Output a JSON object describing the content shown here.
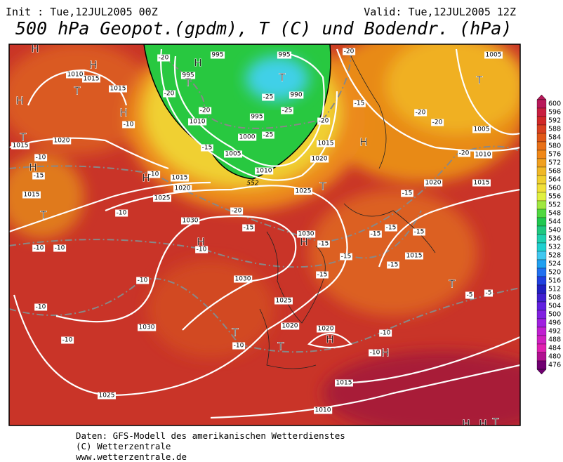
{
  "header": {
    "init": "Init : Tue,12JUL2005 00Z",
    "valid": "Valid: Tue,12JUL2005 12Z",
    "title": "500 hPa Geopot.(gpdm), T (C) und Bodendr. (hPa)"
  },
  "map": {
    "pressure_labels": [
      "995",
      "995",
      "995",
      "990",
      "995",
      "1000",
      "1005",
      "1010",
      "1010",
      "1015",
      "1020",
      "1025",
      "1030",
      "1025",
      "1020",
      "1015",
      "1010",
      "1015",
      "1015",
      "1020",
      "1015",
      "1015",
      "1030",
      "1030",
      "1025",
      "1020",
      "1020",
      "1030",
      "1025",
      "1015",
      "1010",
      "1015",
      "1020",
      "1015",
      "1010",
      "1005",
      "1005"
    ],
    "contour_label": "552",
    "temperature_labels": [
      "-20",
      "-20",
      "-20",
      "-25",
      "-25",
      "-25",
      "-20",
      "-15",
      "-20",
      "-15",
      "-20",
      "-20",
      "-20",
      "-10",
      "-10",
      "-15",
      "-10",
      "-10",
      "-10",
      "-10",
      "-20",
      "-15",
      "-15",
      "-15",
      "-15",
      "-15",
      "-15",
      "-15",
      "-15",
      "-15",
      "-10",
      "-10",
      "-10",
      "-10",
      "-10",
      "-10",
      "-10",
      "-5",
      "-5"
    ],
    "centers": [
      "H",
      "H",
      "H",
      "H",
      "H",
      "H",
      "H",
      "H",
      "H",
      "H",
      "H",
      "H",
      "H",
      "H",
      "T",
      "T",
      "T",
      "T",
      "T",
      "T",
      "T",
      "T",
      "T",
      "T",
      "T"
    ]
  },
  "colorbar": {
    "ticks": [
      600,
      596,
      592,
      588,
      584,
      580,
      576,
      572,
      568,
      564,
      560,
      556,
      552,
      548,
      544,
      540,
      536,
      532,
      528,
      524,
      520,
      516,
      512,
      508,
      504,
      500,
      496,
      492,
      488,
      484,
      480,
      476
    ]
  },
  "footer": [
    "Daten: GFS-Modell des amerikanischen Wetterdienstes",
    "(C) Wetterzentrale",
    "www.wetterzentrale.de"
  ]
}
